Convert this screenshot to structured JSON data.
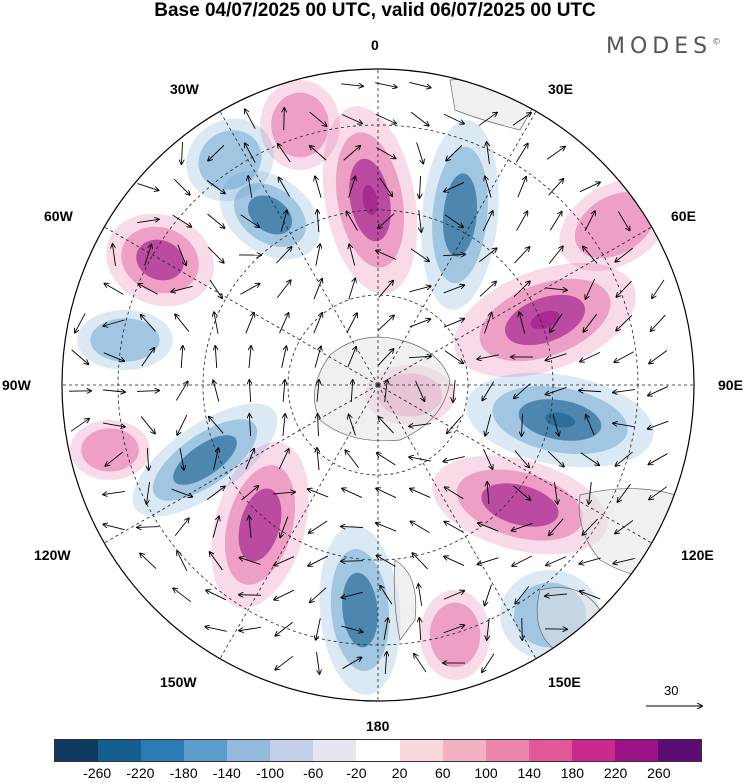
{
  "title": "Base 04/07/2025 00 UTC, valid 06/07/2025 00 UTC",
  "brand": "MODES",
  "brand_mark": "©",
  "longitude_labels": {
    "top": "0",
    "top_left": "30W",
    "top_right": "30E",
    "upper_left": "60W",
    "upper_right": "60E",
    "left": "90W",
    "right": "90E",
    "lower_left": "120W",
    "lower_right": "120E",
    "bottom_left": "150W",
    "bottom_right": "150E",
    "bottom": "180"
  },
  "wind_reference": "30",
  "colorbar": {
    "colors": [
      "#0f3a5f",
      "#155e8f",
      "#2a7ab3",
      "#5a9ccb",
      "#93b9dc",
      "#c3cfe8",
      "#e6e6f2",
      "#ffffff",
      "#f7d8dc",
      "#f2b2c2",
      "#ec86ac",
      "#e0579a",
      "#c82a8e",
      "#9a1488",
      "#5c0c73"
    ],
    "ticks": [
      "-260",
      "-220",
      "-180",
      "-140",
      "-100",
      "-60",
      "-20",
      "20",
      "60",
      "100",
      "140",
      "180",
      "220",
      "260"
    ]
  },
  "map_colors": {
    "positive": "#e0579a",
    "strong_positive": "#9a1488",
    "negative": "#5a9ccb",
    "strong_negative": "#155e8f",
    "land": "#e4e4e4"
  }
}
